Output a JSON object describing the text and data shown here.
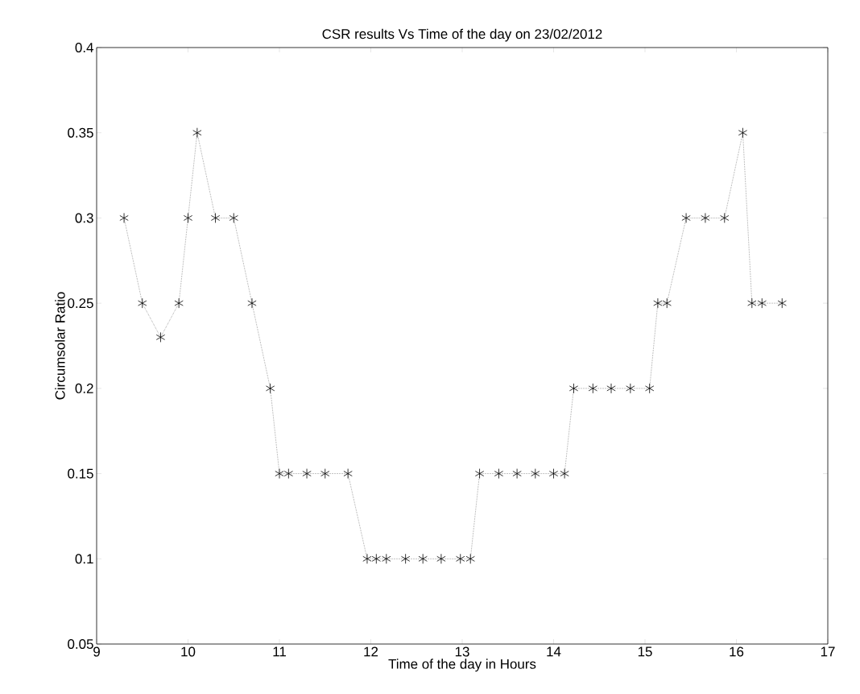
{
  "chart_data": {
    "type": "line",
    "title": "CSR results Vs Time of the day on 23/02/2012",
    "xlabel": "Time of the day in Hours",
    "ylabel": "Circumsolar Ratio",
    "x": [
      9.3,
      9.5,
      9.7,
      9.9,
      10.0,
      10.1,
      10.3,
      10.5,
      10.7,
      10.9,
      11.0,
      11.1,
      11.3,
      11.5,
      11.75,
      11.96,
      12.06,
      12.17,
      12.38,
      12.57,
      12.77,
      12.98,
      13.09,
      13.19,
      13.4,
      13.6,
      13.8,
      14.0,
      14.12,
      14.22,
      14.43,
      14.63,
      14.84,
      15.05,
      15.14,
      15.24,
      15.45,
      15.66,
      15.87,
      16.07,
      16.17,
      16.28,
      16.5
    ],
    "series": [
      {
        "color": "#000000",
        "values": [
          0.3,
          0.25,
          0.23,
          0.25,
          0.3,
          0.35,
          0.3,
          0.3,
          0.25,
          0.2,
          0.15,
          0.15,
          0.15,
          0.15,
          0.15,
          0.1,
          0.1,
          0.1,
          0.1,
          0.1,
          0.1,
          0.1,
          0.1,
          0.15,
          0.15,
          0.15,
          0.15,
          0.15,
          0.15,
          0.2,
          0.2,
          0.2,
          0.2,
          0.2,
          0.25,
          0.25,
          0.3,
          0.3,
          0.3,
          0.35,
          0.25,
          0.25,
          0.25
        ]
      }
    ],
    "xlim": [
      9,
      17
    ],
    "ylim": [
      0.05,
      0.4
    ],
    "xticks": [
      9,
      10,
      11,
      12,
      13,
      14,
      15,
      16,
      17
    ],
    "yticks": [
      0.05,
      0.1,
      0.15,
      0.2,
      0.25,
      0.3,
      0.35,
      0.4
    ],
    "marker": "cross",
    "line_style": "dotted",
    "grid": false
  }
}
